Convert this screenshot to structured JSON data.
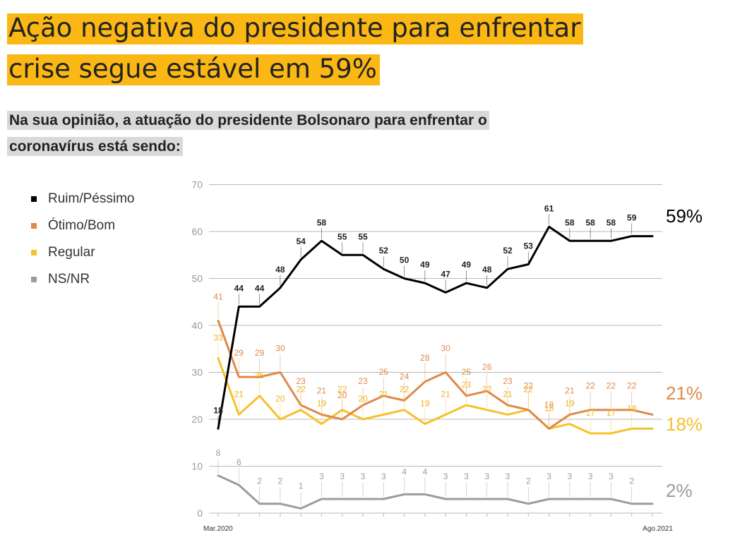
{
  "title_lines": [
    "Ação negativa do presidente para enfrentar",
    "crise segue estável em 59%"
  ],
  "subtitle_lines": [
    "Na sua opinião, a atuação do presidente Bolsonaro para enfrentar o",
    "coronavírus está sendo:"
  ],
  "colors": {
    "title_bg": "#fbb815",
    "subtitle_bg": "#d9d9d9",
    "ruim": "#000000",
    "otimo": "#e0884a",
    "regular": "#f6c12a",
    "nsnr": "#9c9c9c"
  },
  "chart_data": {
    "type": "line",
    "ylim": [
      0,
      70
    ],
    "yticks": [
      0,
      10,
      20,
      30,
      40,
      50,
      60,
      70
    ],
    "x_start_label": "Mar.2020",
    "x_end_label": "Ago.2021",
    "points": 22,
    "grid": true,
    "legend_position": "left",
    "series": [
      {
        "name": "Ruim/Péssimo",
        "color": "#000000",
        "end_label": "59%",
        "values": [
          18,
          44,
          44,
          48,
          54,
          58,
          55,
          55,
          52,
          50,
          49,
          47,
          49,
          48,
          52,
          53,
          61,
          58,
          58,
          58,
          59,
          59
        ]
      },
      {
        "name": "Ótimo/Bom",
        "color": "#e0884a",
        "end_label": "21%",
        "values": [
          41,
          29,
          29,
          30,
          23,
          21,
          20,
          23,
          25,
          24,
          28,
          30,
          25,
          26,
          23,
          22,
          18,
          21,
          22,
          22,
          22,
          21
        ]
      },
      {
        "name": "Regular",
        "color": "#f6c12a",
        "end_label": "18%",
        "values": [
          33,
          21,
          25,
          20,
          22,
          19,
          22,
          20,
          21,
          22,
          19,
          21,
          23,
          22,
          21,
          22,
          18,
          19,
          17,
          17,
          18,
          18
        ]
      },
      {
        "name": "NS/NR",
        "color": "#9c9c9c",
        "end_label": "2%",
        "values": [
          8,
          6,
          2,
          2,
          1,
          3,
          3,
          3,
          3,
          4,
          4,
          3,
          3,
          3,
          3,
          2,
          3,
          3,
          3,
          3,
          2,
          2
        ]
      }
    ],
    "data_labels": {
      "Ruim/Péssimo": [
        18,
        44,
        44,
        48,
        54,
        58,
        55,
        55,
        52,
        50,
        49,
        47,
        49,
        48,
        52,
        53,
        61,
        58,
        58,
        58,
        59,
        null
      ],
      "Ótimo/Bom": [
        41,
        29,
        29,
        30,
        23,
        21,
        20,
        23,
        25,
        24,
        28,
        30,
        25,
        26,
        23,
        22,
        18,
        21,
        22,
        22,
        22,
        null
      ],
      "Regular": [
        33,
        21,
        25,
        20,
        22,
        19,
        22,
        20,
        21,
        22,
        19,
        21,
        23,
        22,
        21,
        22,
        18,
        19,
        17,
        17,
        18,
        null
      ],
      "NS/NR": [
        8,
        6,
        2,
        2,
        1,
        3,
        3,
        3,
        3,
        4,
        4,
        3,
        3,
        3,
        3,
        2,
        3,
        3,
        3,
        3,
        2,
        null
      ]
    }
  }
}
